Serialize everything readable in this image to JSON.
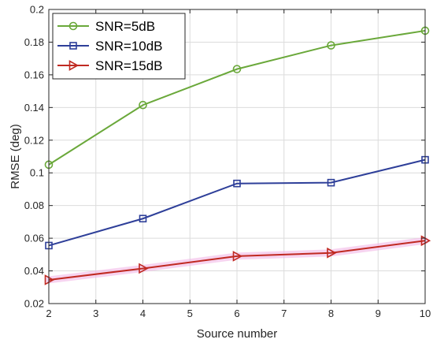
{
  "chart_data": {
    "type": "line",
    "title": "",
    "xlabel": "Source number",
    "ylabel": "RMSE (deg)",
    "xlim": [
      2,
      10
    ],
    "ylim": [
      0.02,
      0.2
    ],
    "xticks": [
      2,
      3,
      4,
      5,
      6,
      7,
      8,
      9,
      10
    ],
    "yticks": [
      0.02,
      0.04,
      0.06,
      0.08,
      0.1,
      0.12,
      0.14,
      0.16,
      0.18,
      0.2
    ],
    "xtick_labels": [
      "2",
      "3",
      "4",
      "5",
      "6",
      "7",
      "8",
      "9",
      "10"
    ],
    "ytick_labels": [
      "0.02",
      "0.04",
      "0.06",
      "0.08",
      "0.1",
      "0.12",
      "0.14",
      "0.16",
      "0.18",
      "0.2"
    ],
    "grid": true,
    "legend_position": "top-left",
    "x": [
      2,
      4,
      6,
      8,
      10
    ],
    "series": [
      {
        "name": "SNR=5dB",
        "values": [
          0.105,
          0.1415,
          0.1635,
          0.178,
          0.187
        ],
        "color": "#6aa83a",
        "marker": "circle"
      },
      {
        "name": "SNR=10dB",
        "values": [
          0.0555,
          0.072,
          0.0935,
          0.094,
          0.108
        ],
        "color": "#2e3f99",
        "marker": "square"
      },
      {
        "name": "SNR=15dB",
        "values": [
          0.0345,
          0.0415,
          0.049,
          0.051,
          0.0585
        ],
        "color": "#c02a22",
        "marker": "triangle-right"
      }
    ]
  }
}
